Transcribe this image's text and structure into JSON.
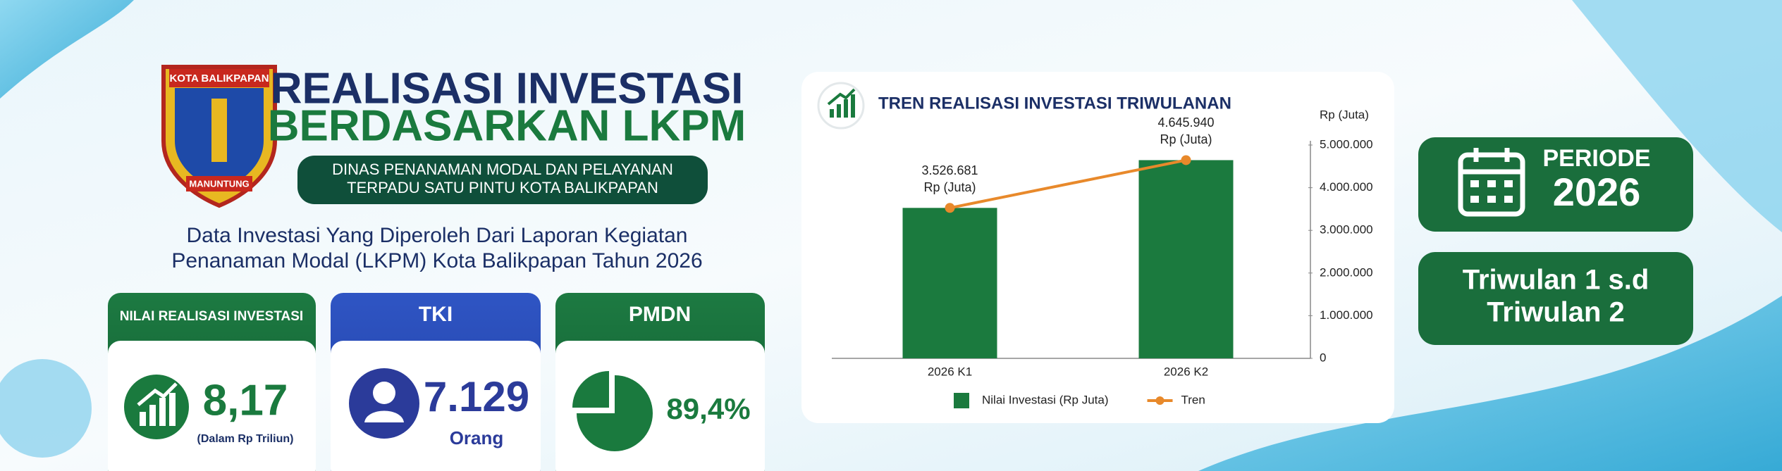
{
  "header": {
    "logo_top": "KOTA BALIKPAPAN",
    "logo_bottom": "MANUNTUNG",
    "title_line1": "REALISASI INVESTASI",
    "title_line2": "BERDASARKAN LKPM",
    "subtitle_line1": "DINAS PENANAMAN MODAL DAN PELAYANAN",
    "subtitle_line2": "TERPADU SATU PINTU KOTA BALIKPAPAN",
    "description_line1": "Data Investasi Yang Diperoleh Dari Laporan Kegiatan",
    "description_line2": "Penanaman Modal (LKPM) Kota Balikpapan Tahun 2026"
  },
  "cards": [
    {
      "title": "NILAI REALISASI INVESTASI",
      "value": "8,17",
      "unit": "(Dalam Rp Triliun)"
    },
    {
      "title": "TKI",
      "value": "7.129",
      "unit": "Orang"
    },
    {
      "title": "PMDN",
      "value": "89,4%"
    }
  ],
  "period": {
    "label": "PERIODE",
    "year": "2026",
    "range_line1": "Triwulan 1 s.d",
    "range_line2": "Triwulan 2"
  },
  "chart_data": {
    "type": "bar",
    "title": "TREN REALISASI INVESTASI TRIWULANAN",
    "y_axis_label": "Rp (Juta)",
    "categories": [
      "2026 K1",
      "2026 K2"
    ],
    "series": [
      {
        "name": "Nilai Investasi (Rp Juta)",
        "type": "bar",
        "color": "#1b7a3e",
        "values": [
          3526681,
          4645940
        ]
      },
      {
        "name": "Tren",
        "type": "line",
        "color": "#e8892b",
        "values": [
          3526681,
          4645940
        ],
        "value_labels": [
          "3.526.681",
          "4.645.940"
        ],
        "value_label_unit": "Rp (Juta)"
      }
    ],
    "ylim": [
      0,
      5000000
    ],
    "yticks": [
      {
        "value": 0,
        "label": "0"
      },
      {
        "value": 1000000,
        "label": "1.000.000"
      },
      {
        "value": 2000000,
        "label": "2.000.000"
      },
      {
        "value": 3000000,
        "label": "3.000.000"
      },
      {
        "value": 4000000,
        "label": "4.000.000"
      },
      {
        "value": 5000000,
        "label": "5.000.000"
      }
    ],
    "legend": "bottom"
  }
}
